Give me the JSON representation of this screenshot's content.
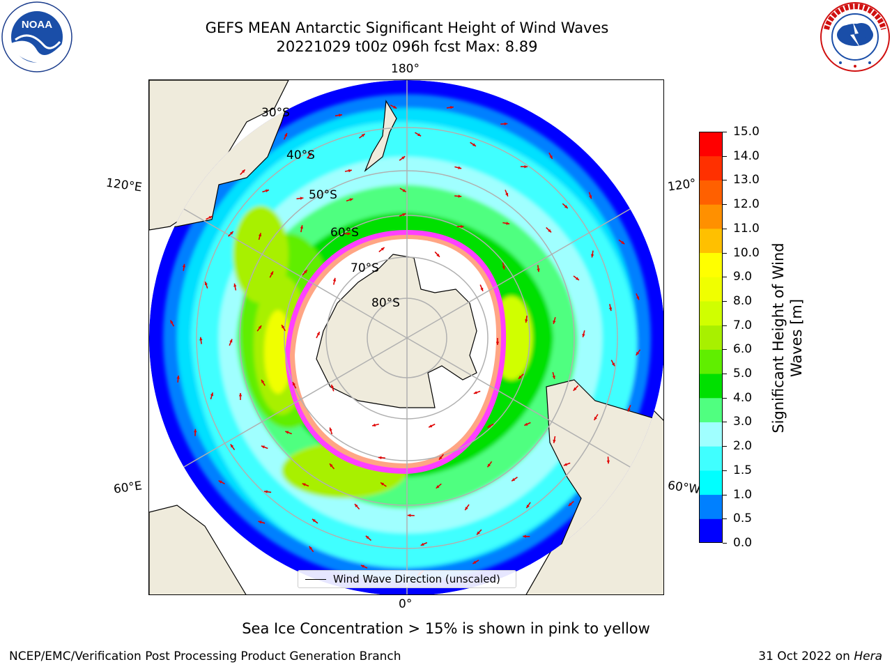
{
  "title": {
    "line1": "GEFS MEAN Antarctic Significant Height of Wind Waves",
    "line2": "20221029 t00z 096h fcst   Max: 8.89"
  },
  "logos": {
    "noaa": {
      "text": "NOAA",
      "ring_text": "NATIONAL OCEANIC AND ATMOSPHERIC ADMINISTRATION · U.S. DEPARTMENT OF COMMERCE"
    },
    "nws": {
      "ring_text": "NATIONAL WEATHER SERVICE"
    }
  },
  "map": {
    "projection": "south polar stereographic",
    "longitude_labels": {
      "top": "180°",
      "bottom": "0°",
      "upper_left": "120°E",
      "lower_left": "60°E",
      "upper_right": "120°",
      "lower_right": "60°W"
    },
    "latitude_labels": [
      "30°S",
      "40°S",
      "50°S",
      "60°S",
      "70°S",
      "80°S"
    ],
    "legend": "Wind Wave Direction (unscaled)",
    "field": "Significant Height of Wind Waves",
    "field_max": 8.89,
    "land_color": "#efebdc",
    "ice_colors": [
      "#ff40ff",
      "#ffa040",
      "#ffd050"
    ]
  },
  "colorbar": {
    "label": "Significant Height of Wind Waves [m]",
    "ticks": [
      "0.0",
      "0.5",
      "1.0",
      "1.5",
      "2.0",
      "3.0",
      "4.0",
      "5.0",
      "6.0",
      "7.0",
      "8.0",
      "9.0",
      "10.0",
      "11.0",
      "12.0",
      "13.0",
      "14.0",
      "15.0"
    ],
    "colors": [
      "#0000ff",
      "#0080ff",
      "#00ffff",
      "#40ffff",
      "#a0ffff",
      "#50ff80",
      "#00e000",
      "#60ee00",
      "#a8f000",
      "#d0ff00",
      "#f0ff00",
      "#ffff00",
      "#ffc000",
      "#ff9000",
      "#ff6000",
      "#ff3000",
      "#ff0000"
    ]
  },
  "footnote": "Sea Ice Concentration > 15% is shown in pink to yellow",
  "credits": {
    "left": "NCEP/EMC/Verification Post Processing Product Generation Branch",
    "right_date": "31 Oct 2022 on",
    "right_host": "Hera"
  }
}
